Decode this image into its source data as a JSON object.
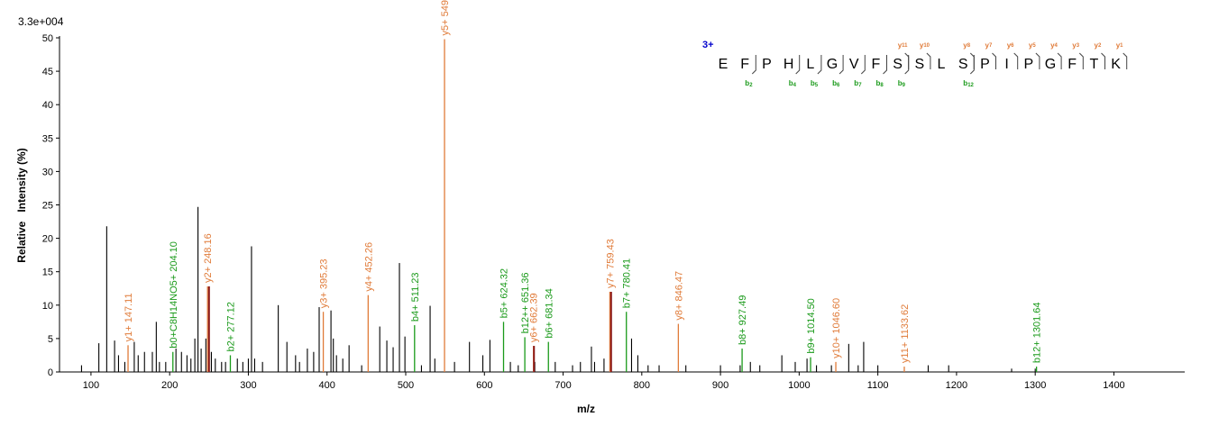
{
  "chart_data": {
    "type": "bar",
    "scale_label": "3.3e+004",
    "xlabel": "m/z",
    "ylabel": "Relative   Intensity (%)",
    "xlim": [
      60,
      1490
    ],
    "ylim": [
      0,
      50
    ],
    "xticks": [
      100,
      200,
      300,
      400,
      500,
      600,
      700,
      800,
      900,
      1000,
      1100,
      1200,
      1300,
      1400
    ],
    "yticks": [
      0,
      5,
      10,
      15,
      20,
      25,
      30,
      35,
      40,
      45,
      50
    ],
    "colors": {
      "unassigned": "#000000",
      "y_ion": "#e07b39",
      "b_ion": "#1a9a1a",
      "highlight": "#8b1a1a",
      "charge": "#0000cc"
    },
    "unassigned_peaks": [
      [
        88,
        1
      ],
      [
        110,
        4.3
      ],
      [
        120,
        21.8
      ],
      [
        130,
        4.7
      ],
      [
        135,
        2.5
      ],
      [
        143,
        1.5
      ],
      [
        155,
        4.5
      ],
      [
        160,
        2.5
      ],
      [
        168,
        3
      ],
      [
        178,
        3
      ],
      [
        183,
        7.5
      ],
      [
        187,
        1.5
      ],
      [
        195,
        1.5
      ],
      [
        208,
        3.5
      ],
      [
        215,
        3
      ],
      [
        222,
        2.5
      ],
      [
        227,
        2
      ],
      [
        232,
        5
      ],
      [
        236,
        24.7
      ],
      [
        240,
        3.5
      ],
      [
        246,
        5
      ],
      [
        253,
        3
      ],
      [
        258,
        2
      ],
      [
        266,
        1.5
      ],
      [
        271,
        1.5
      ],
      [
        286,
        2
      ],
      [
        293,
        1.5
      ],
      [
        300,
        2
      ],
      [
        304,
        18.8
      ],
      [
        308,
        2
      ],
      [
        318,
        1.5
      ],
      [
        338,
        10
      ],
      [
        349,
        4.5
      ],
      [
        360,
        2.5
      ],
      [
        365,
        1.5
      ],
      [
        375,
        3.5
      ],
      [
        383,
        3
      ],
      [
        390,
        9.7
      ],
      [
        405,
        9.2
      ],
      [
        408,
        5
      ],
      [
        412,
        2.5
      ],
      [
        420,
        2
      ],
      [
        428,
        4
      ],
      [
        444,
        1
      ],
      [
        467,
        6.8
      ],
      [
        476,
        4.7
      ],
      [
        484,
        3.7
      ],
      [
        492,
        16.3
      ],
      [
        499,
        5.3
      ],
      [
        520,
        1
      ],
      [
        531,
        9.9
      ],
      [
        537,
        2
      ],
      [
        562,
        1.5
      ],
      [
        581,
        4.5
      ],
      [
        598,
        2.5
      ],
      [
        607,
        4.8
      ],
      [
        633,
        1.5
      ],
      [
        643,
        1
      ],
      [
        664,
        1.5
      ],
      [
        690,
        1.5
      ],
      [
        712,
        1
      ],
      [
        722,
        1.5
      ],
      [
        736,
        3.8
      ],
      [
        740,
        1.5
      ],
      [
        752,
        2
      ],
      [
        787,
        5
      ],
      [
        795,
        2.5
      ],
      [
        808,
        1
      ],
      [
        822,
        1
      ],
      [
        856,
        1
      ],
      [
        900,
        1
      ],
      [
        925,
        1
      ],
      [
        938,
        1.5
      ],
      [
        950,
        1
      ],
      [
        978,
        2.5
      ],
      [
        995,
        1.5
      ],
      [
        1010,
        2
      ],
      [
        1022,
        1
      ],
      [
        1041,
        1
      ],
      [
        1063,
        4.2
      ],
      [
        1075,
        1
      ],
      [
        1082,
        4.5
      ],
      [
        1100,
        1
      ],
      [
        1164,
        1
      ],
      [
        1190,
        1
      ],
      [
        1270,
        0.5
      ],
      [
        1300,
        0.5
      ]
    ],
    "annotated_peaks": [
      {
        "mz": 147.11,
        "y": 4,
        "label": "y1+ 147.11",
        "ion": "y"
      },
      {
        "mz": 204.1,
        "y": 3,
        "label": "b0+C8H14NO5+ 204.10",
        "ion": "b"
      },
      {
        "mz": 248.16,
        "y": 12.8,
        "label": "y2+ 248.16",
        "ion": "y"
      },
      {
        "mz": 277.12,
        "y": 2.5,
        "label": "b2+ 277.12",
        "ion": "b"
      },
      {
        "mz": 395.23,
        "y": 9,
        "label": "y3+ 395.23",
        "ion": "y"
      },
      {
        "mz": 452.26,
        "y": 11.5,
        "label": "y4+ 452.26",
        "ion": "y"
      },
      {
        "mz": 511.23,
        "y": 7,
        "label": "b4+ 511.23",
        "ion": "b"
      },
      {
        "mz": 549.3,
        "y": 49.8,
        "label": "y5+ 549.3",
        "ion": "y"
      },
      {
        "mz": 624.32,
        "y": 7.5,
        "label": "b5+ 624.32",
        "ion": "b"
      },
      {
        "mz": 651.36,
        "y": 5.2,
        "label": "b12++ 651.36",
        "ion": "b"
      },
      {
        "mz": 662.39,
        "y": 3.9,
        "label": "y6+ 662.39",
        "ion": "y"
      },
      {
        "mz": 681.34,
        "y": 4.5,
        "label": "b6+ 681.34",
        "ion": "b"
      },
      {
        "mz": 759.43,
        "y": 12,
        "label": "y7+ 759.43",
        "ion": "y"
      },
      {
        "mz": 780.41,
        "y": 9,
        "label": "b7+ 780.41",
        "ion": "b"
      },
      {
        "mz": 846.47,
        "y": 7.2,
        "label": "y8+ 846.47",
        "ion": "y"
      },
      {
        "mz": 927.49,
        "y": 3.5,
        "label": "b8+ 927.49",
        "ion": "b"
      },
      {
        "mz": 1014.5,
        "y": 2.2,
        "label": "b9+ 1014.50",
        "ion": "b"
      },
      {
        "mz": 1046.6,
        "y": 1.5,
        "label": "y10+ 1046.60",
        "ion": "y"
      },
      {
        "mz": 1133.62,
        "y": 0.8,
        "label": "y11+ 1133.62",
        "ion": "y"
      },
      {
        "mz": 1301.64,
        "y": 0.8,
        "label": "b12+ 1301.64",
        "ion": "b"
      }
    ],
    "highlight_peaks": [
      [
        250,
        12.8
      ],
      [
        663,
        3.9
      ],
      [
        761,
        12
      ]
    ],
    "sequence": {
      "charge": "3+",
      "residues": [
        "E",
        "F",
        "P",
        "H",
        "L",
        "G",
        "V",
        "F",
        "S",
        "S",
        "L",
        "S",
        "P",
        "I",
        "P",
        "G",
        "F",
        "T",
        "K"
      ],
      "y_ions": [
        {
          "after": 9,
          "label": "11"
        },
        {
          "after": 10,
          "label": "10"
        },
        {
          "after": 12,
          "label": "8"
        },
        {
          "after": 13,
          "label": "7"
        },
        {
          "after": 14,
          "label": "6"
        },
        {
          "after": 15,
          "label": "5"
        },
        {
          "after": 16,
          "label": "4"
        },
        {
          "after": 17,
          "label": "3"
        },
        {
          "after": 18,
          "label": "2"
        },
        {
          "after": 19,
          "label": "1"
        }
      ],
      "b_ions": [
        {
          "after": 2,
          "label": "2"
        },
        {
          "after": 4,
          "label": "4"
        },
        {
          "after": 5,
          "label": "5"
        },
        {
          "after": 6,
          "label": "6"
        },
        {
          "after": 7,
          "label": "7"
        },
        {
          "after": 8,
          "label": "8"
        },
        {
          "after": 9,
          "label": "9"
        },
        {
          "after": 12,
          "label": "12"
        }
      ]
    }
  }
}
